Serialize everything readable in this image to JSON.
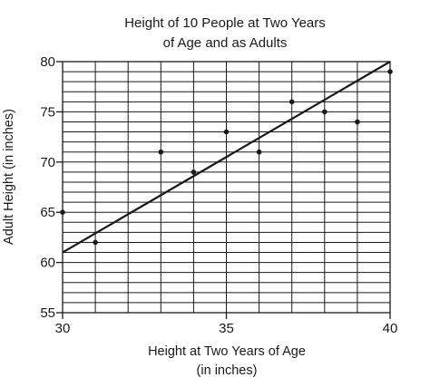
{
  "chart_data": {
    "type": "scatter",
    "title_lines": [
      "Height of 10 People at Two Years",
      "of Age and as Adults"
    ],
    "xlabel_lines": [
      "Height at Two Years of Age",
      "(in inches)"
    ],
    "ylabel": "Adult Height (in inches)",
    "xlim": [
      30,
      40
    ],
    "ylim": [
      55,
      80
    ],
    "x_ticks": [
      30,
      35,
      40
    ],
    "y_ticks": [
      55,
      60,
      65,
      70,
      75,
      80
    ],
    "grid": {
      "vertical_step": 1,
      "horizontal_step": 1,
      "show": true
    },
    "points": [
      {
        "x": 30,
        "y": 65
      },
      {
        "x": 31,
        "y": 62
      },
      {
        "x": 33,
        "y": 71
      },
      {
        "x": 34,
        "y": 69
      },
      {
        "x": 35,
        "y": 73
      },
      {
        "x": 36,
        "y": 71
      },
      {
        "x": 37,
        "y": 76
      },
      {
        "x": 38,
        "y": 75
      },
      {
        "x": 39,
        "y": 74
      },
      {
        "x": 40,
        "y": 79
      }
    ],
    "trend_line": {
      "x1": 30,
      "y1": 61,
      "x2": 40,
      "y2": 80
    },
    "colors": {
      "ink": "#1a1a1a",
      "grid": "#1a1a1a",
      "background": "#ffffff"
    }
  }
}
